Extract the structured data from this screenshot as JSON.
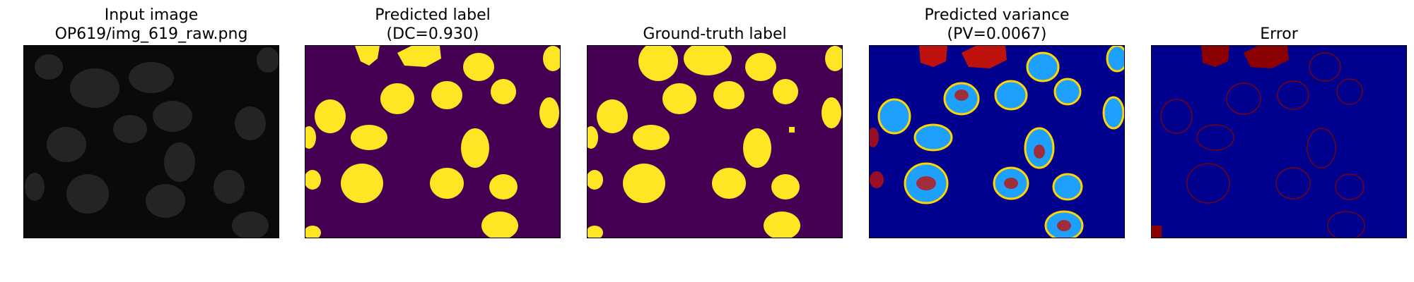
{
  "panels": [
    {
      "id": "input",
      "title_line1": "Input image",
      "title_line2": "OP619/img_619_raw.png",
      "colors": {
        "background": "#0a0a0a",
        "cell": "#3a3a3a"
      }
    },
    {
      "id": "predicted",
      "title_line1": "Predicted label",
      "title_line2": "(DC=0.930)",
      "colors": {
        "background": "#440154",
        "cell": "#fde725"
      }
    },
    {
      "id": "ground-truth",
      "title_line1": "Ground-truth label",
      "title_line2": "",
      "colors": {
        "background": "#440154",
        "cell": "#fde725"
      }
    },
    {
      "id": "variance",
      "title_line1": "Predicted variance",
      "title_line2": "(PV=0.0067)",
      "colors": {
        "background": "#00008f",
        "cell": "#1ea0ff",
        "hot": "#c0120c",
        "warm": "#ffd500"
      }
    },
    {
      "id": "error",
      "title_line1": "Error",
      "title_line2": "",
      "colors": {
        "background": "#00008f",
        "cell": "#00008f",
        "edge": "#8b0000"
      }
    }
  ]
}
